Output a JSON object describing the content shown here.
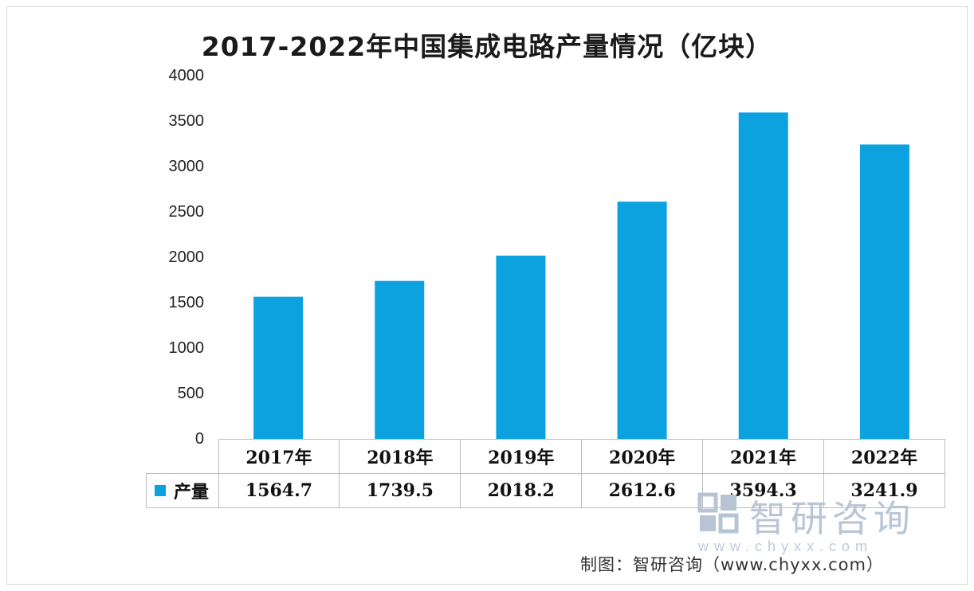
{
  "chart_data": {
    "type": "bar",
    "title": "2017-2022年中国集成电路产量情况（亿块）",
    "categories": [
      "2017年",
      "2018年",
      "2019年",
      "2020年",
      "2021年",
      "2022年"
    ],
    "series": [
      {
        "name": "产量",
        "values": [
          1564.7,
          1739.5,
          2018.2,
          2612.6,
          3594.3,
          3241.9
        ]
      }
    ],
    "value_labels": [
      "1564.7",
      "1739.5",
      "2018.2",
      "2612.6",
      "3594.3",
      "3241.9"
    ],
    "yticks": [
      "0",
      "500",
      "1000",
      "1500",
      "2000",
      "2500",
      "3000",
      "3500",
      "4000"
    ],
    "ylim": [
      0,
      4000
    ],
    "xlabel": "",
    "ylabel": "",
    "grid": false,
    "legend": "bottom-left (data table)",
    "bar_color": "#0ca2e0"
  },
  "watermark": {
    "brand_text": "智研咨询",
    "url_text": "www.chyxx.com"
  },
  "credit": "制图：智研咨询（www.chyxx.com）"
}
